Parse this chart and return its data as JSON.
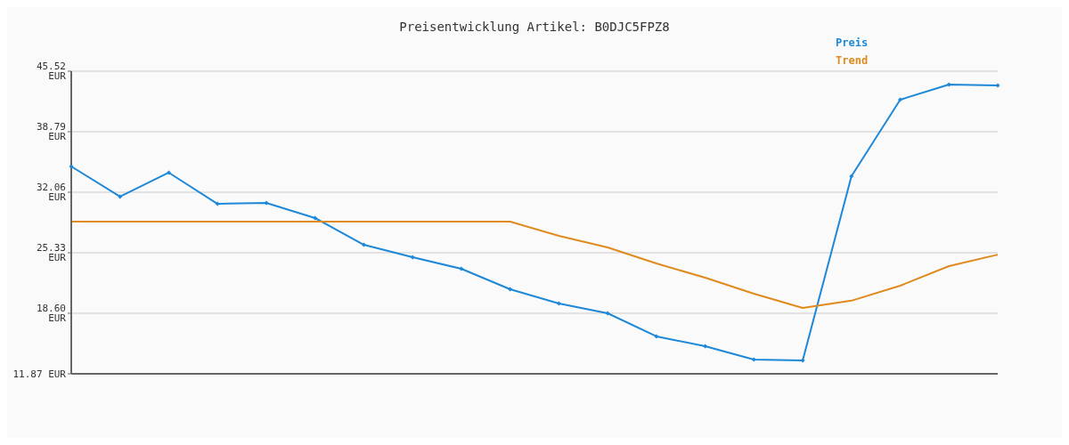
{
  "chart_data": {
    "type": "line",
    "title": "Preisentwicklung Artikel: B0DJC5FPZ8",
    "categories": [
      null,
      null,
      null,
      null,
      null,
      null,
      null,
      null,
      null,
      null,
      null,
      null,
      null,
      null,
      null,
      null,
      null,
      null,
      null,
      null
    ],
    "series": [
      {
        "name": "Preis",
        "color": "#1e88d8",
        "marker": "diamond",
        "values": [
          34.93,
          31.57,
          34.24,
          30.77,
          30.87,
          29.19,
          26.22,
          24.84,
          23.55,
          21.27,
          19.69,
          18.6,
          16.03,
          14.94,
          13.45,
          13.35,
          33.84,
          42.35,
          44.04,
          43.94
        ]
      },
      {
        "name": "Trend",
        "color": "#e08a1e",
        "marker": "none",
        "values": [
          28.79,
          28.79,
          28.79,
          28.79,
          28.79,
          28.79,
          28.79,
          28.79,
          28.79,
          28.79,
          27.21,
          25.92,
          24.14,
          22.56,
          20.78,
          19.19,
          20.0,
          21.67,
          23.85,
          25.12
        ]
      }
    ],
    "ylim": [
      11.87,
      45.52
    ],
    "yticks": [
      {
        "value": 11.87,
        "label": "11.87 EUR"
      },
      {
        "value": 18.6,
        "label": "18.60 EUR"
      },
      {
        "value": 25.33,
        "label": "25.33 EUR"
      },
      {
        "value": 32.06,
        "label": "32.06 EUR"
      },
      {
        "value": 38.79,
        "label": "38.79 EUR"
      },
      {
        "value": 45.52,
        "label": "45.52 EUR"
      }
    ],
    "grid": "y",
    "legend": "top right",
    "tick_labels": "y"
  }
}
